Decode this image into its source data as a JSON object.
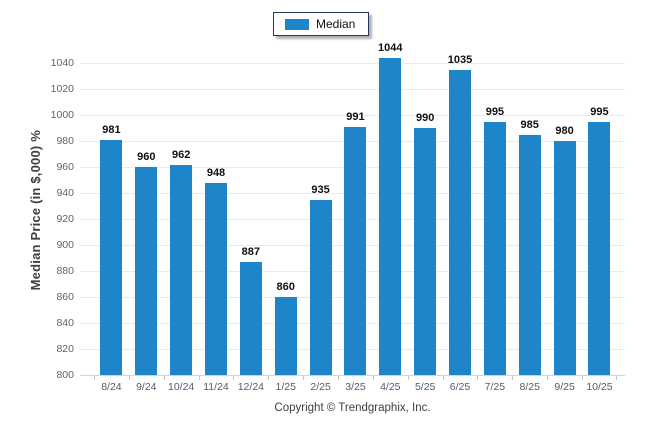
{
  "legend": {
    "items": [
      {
        "label": "Median",
        "color": "#1e86c8"
      }
    ]
  },
  "chart_data": {
    "type": "bar",
    "title": "",
    "categories": [
      "8/24",
      "9/24",
      "10/24",
      "11/24",
      "12/24",
      "1/25",
      "2/25",
      "3/25",
      "4/25",
      "5/25",
      "6/25",
      "7/25",
      "8/25",
      "9/25",
      "10/25"
    ],
    "series": [
      {
        "name": "Median",
        "color": "#1e86c8",
        "values": [
          981,
          960,
          962,
          948,
          887,
          860,
          935,
          991,
          1044,
          990,
          1035,
          995,
          985,
          980,
          995
        ]
      }
    ],
    "xlabel": "",
    "ylabel": "Median Price (in $,000) %",
    "ylim": [
      800,
      1054
    ],
    "yticks": [
      800,
      820,
      840,
      860,
      880,
      900,
      920,
      940,
      960,
      980,
      1000,
      1020,
      1040
    ],
    "grid": true,
    "legend_position": "top-center",
    "value_labels": true,
    "colors": {
      "bar": "#1e86c8",
      "gridline": "#e8eaec",
      "axis_line": "#cfd4d9",
      "tick_text": "#4f5d6d",
      "value_text": "#111111",
      "legend_border": "#1f3864"
    }
  },
  "footer": {
    "copyright": "Copyright © Trendgraphix, Inc."
  }
}
